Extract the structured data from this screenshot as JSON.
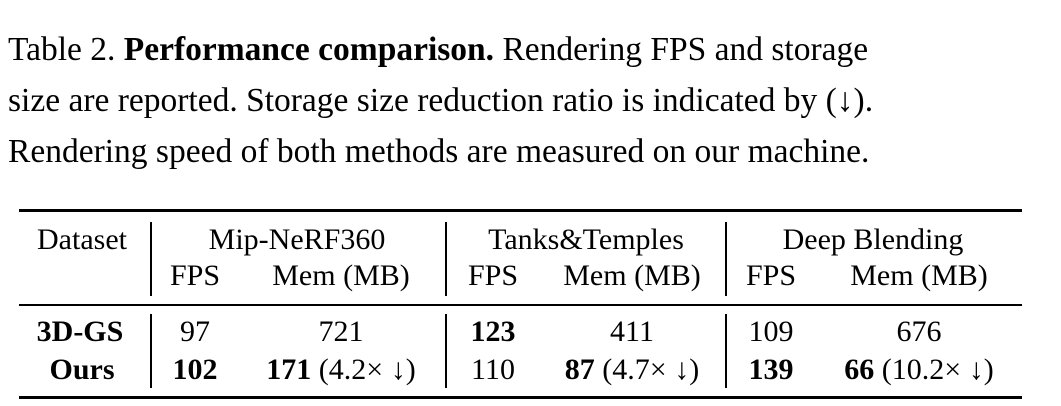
{
  "caption": {
    "label": "Table 2.",
    "title": "Performance comparison.",
    "line1_rest": "Rendering FPS and storage",
    "line2": "size are reported. Storage size reduction ratio is indicated by (↓).",
    "line3": "Rendering speed of both methods are measured on our machine."
  },
  "table": {
    "row_header": "Dataset",
    "datasets": [
      "Mip-NeRF360",
      "Tanks&Temples",
      "Deep Blending"
    ],
    "sub_headers": {
      "fps": "FPS",
      "mem": "Mem (MB)"
    },
    "rows": [
      {
        "method": "3D-GS",
        "cells": [
          {
            "fps": "97",
            "mem": "721",
            "mem_ratio": ""
          },
          {
            "fps": "123",
            "mem": "411",
            "mem_ratio": ""
          },
          {
            "fps": "109",
            "mem": "676",
            "mem_ratio": ""
          }
        ]
      },
      {
        "method": "Ours",
        "cells": [
          {
            "fps": "102",
            "mem": "171",
            "mem_ratio": " (4.2× ↓)"
          },
          {
            "fps": "110",
            "mem": "87",
            "mem_ratio": " (4.7× ↓)"
          },
          {
            "fps": "139",
            "mem": "66",
            "mem_ratio": " (10.2× ↓)"
          }
        ]
      }
    ]
  }
}
